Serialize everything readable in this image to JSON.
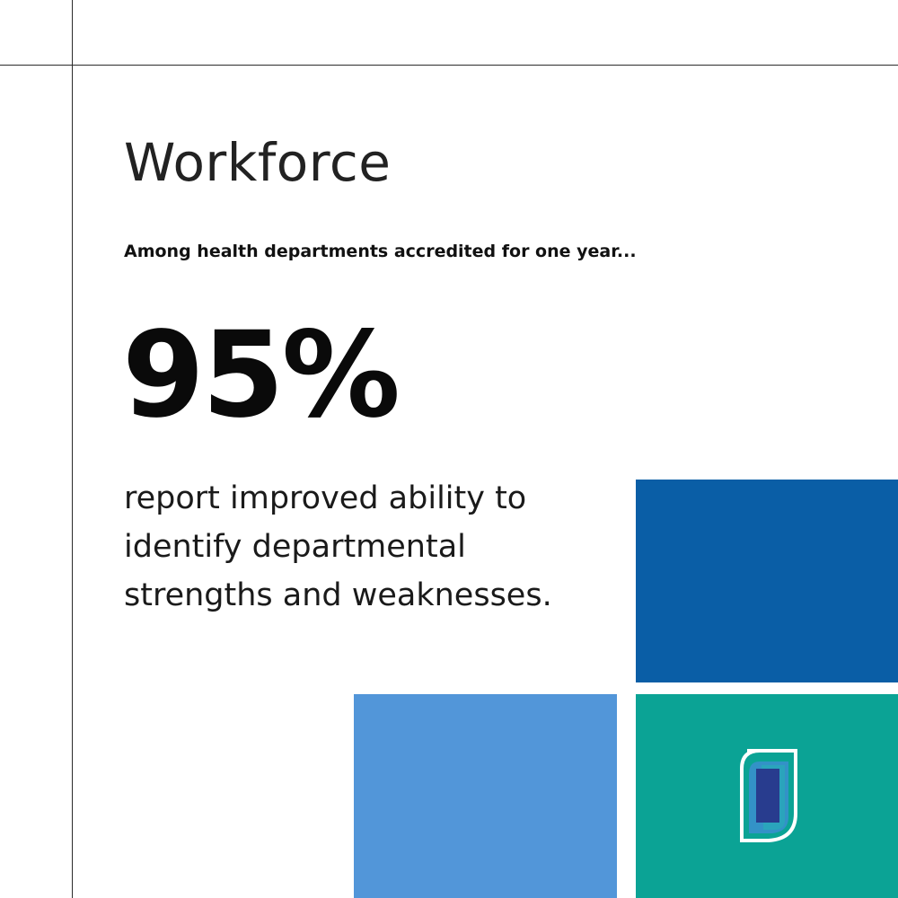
{
  "heading": {
    "title": "Workforce",
    "subtitle": "Among health departments accredited for one year..."
  },
  "stat": {
    "value": "95%",
    "description": "report improved ability to identify departmental strengths and weaknesses."
  },
  "colors": {
    "dark_blue": "#0a5ea6",
    "light_blue": "#5296d9",
    "teal": "#0ba395",
    "logo_navy": "#283c8e",
    "rule": "#2b2b2b"
  },
  "icons": {
    "logo": "accreditation-logo-icon"
  }
}
